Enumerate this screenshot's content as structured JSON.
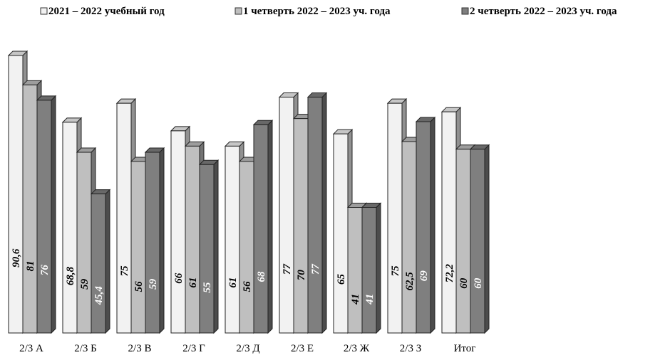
{
  "chart_data": {
    "type": "bar",
    "title": "",
    "xlabel": "",
    "ylabel": "",
    "ylim": [
      0,
      100
    ],
    "grid": false,
    "legend_position": "top",
    "categories": [
      "2/3 А",
      "2/3 Б",
      "2/3 В",
      "2/3 Г",
      "2/3 Д",
      "2/3 Е",
      "2/3 Ж",
      "2/3 З",
      "Итог"
    ],
    "series": [
      {
        "name": "2021 – 2022 учебный год",
        "color": "#f2f2f2",
        "values": [
          90.6,
          68.8,
          75,
          66,
          61,
          77,
          65,
          75,
          72.2
        ],
        "labels": [
          "90,6",
          "68,8",
          "75",
          "66",
          "61",
          "77",
          "65",
          "75",
          "72,2"
        ]
      },
      {
        "name": "1 четверть 2022 – 2023 уч. года",
        "color": "#bfbfbf",
        "values": [
          81,
          59,
          56,
          61,
          56,
          70,
          41,
          62.5,
          60
        ],
        "labels": [
          "81",
          "59",
          "56",
          "61",
          "56",
          "70",
          "41",
          "62,5",
          "60"
        ]
      },
      {
        "name": "2 четверть 2022 – 2023 уч. года",
        "color": "#7f7f7f",
        "values": [
          76,
          45.4,
          59,
          55,
          68,
          77,
          41,
          69,
          60
        ],
        "labels": [
          "76",
          "45,4",
          "59",
          "55",
          "68",
          "77",
          "41",
          "69",
          "60"
        ]
      }
    ]
  }
}
